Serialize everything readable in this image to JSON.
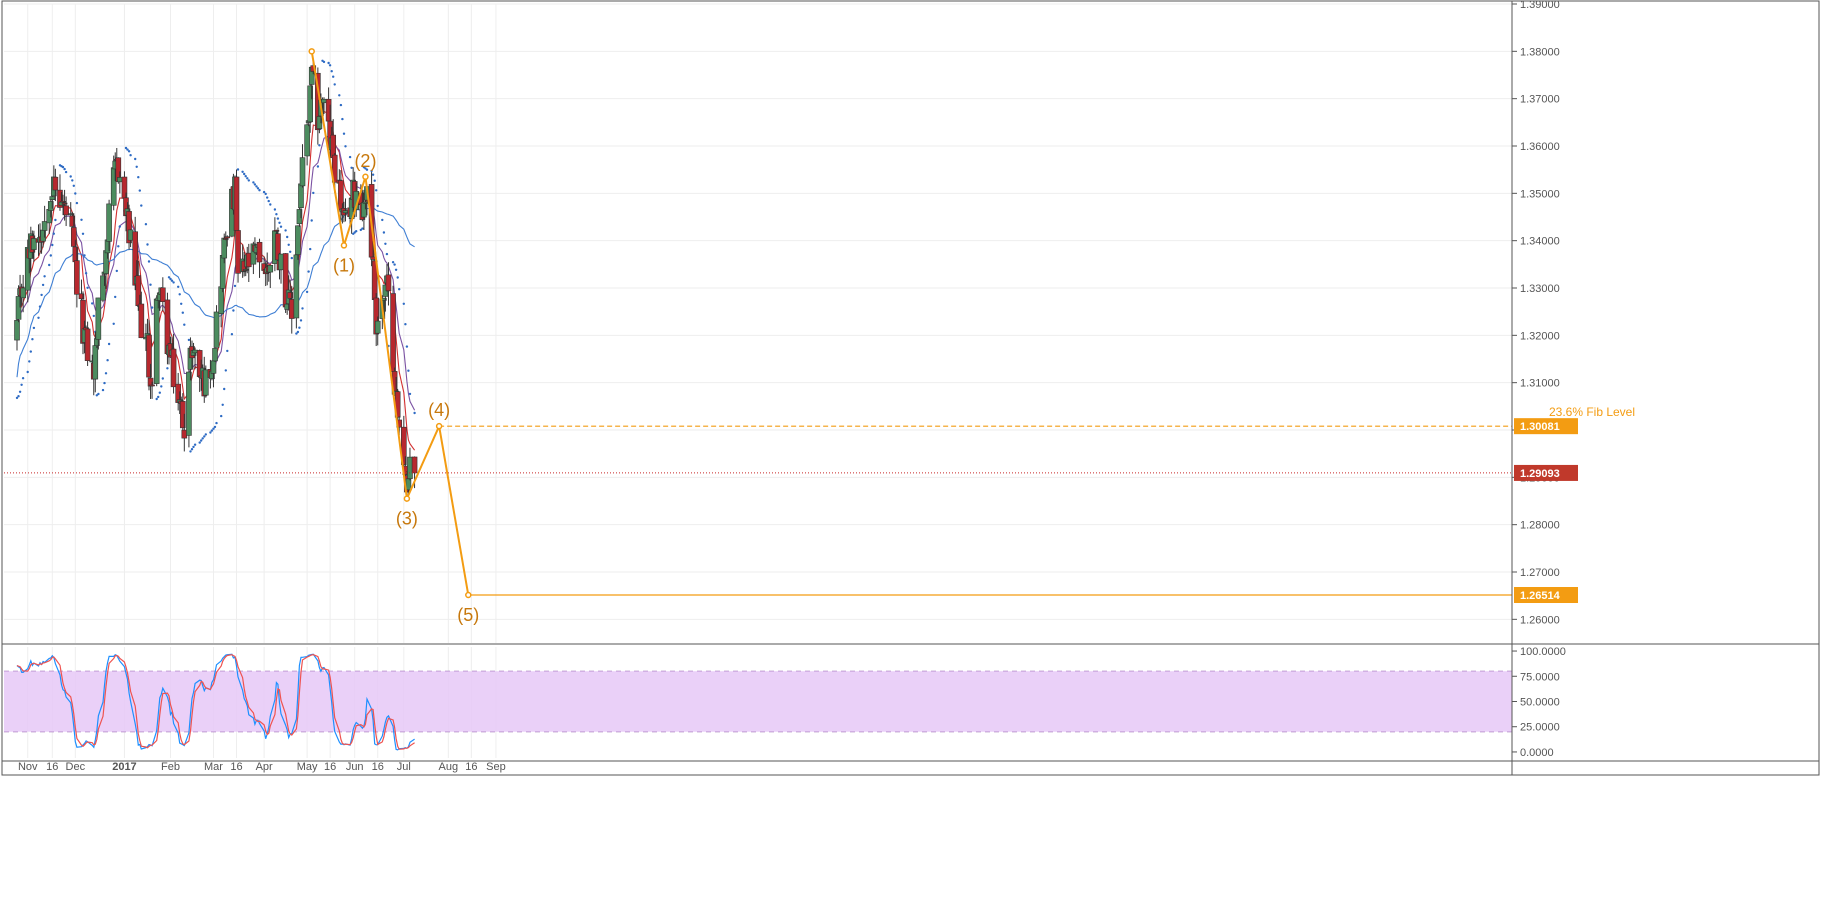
{
  "colors": {
    "up_candle": "#4c8c5f",
    "down_candle": "#b7282e",
    "ema_fast": "#d32f2f",
    "ema_slow": "#7b52a3",
    "sma_long": "#3f7fd4",
    "psar": "#2e6bc4",
    "wave": "#f39c12",
    "price_line": "#c62828",
    "stoch_k": "#1e90ff",
    "stoch_d": "#ef5350",
    "stoch_band": "#e6c8f7",
    "grid": "#eeeeee"
  },
  "chart_data": [
    {
      "type": "candlestick",
      "ylim": [
        1.255,
        1.39
      ],
      "grid": true,
      "x_tick_labels": [
        "Nov",
        "16",
        "Dec",
        "2017",
        "Feb",
        "Mar",
        "16",
        "Apr",
        "May",
        "16",
        "Jun",
        "16",
        "Jul",
        "Aug",
        "16",
        "Sep"
      ],
      "y_tick_labels": [
        "1.39000",
        "1.38000",
        "1.37000",
        "1.36000",
        "1.35000",
        "1.34000",
        "1.33000",
        "1.32000",
        "1.31000",
        "1.30000",
        "1.29000",
        "1.28000",
        "1.27000",
        "1.26000"
      ],
      "y_ticks": [
        1.39,
        1.38,
        1.37,
        1.36,
        1.35,
        1.34,
        1.33,
        1.32,
        1.31,
        1.3,
        1.29,
        1.28,
        1.27,
        1.26
      ],
      "last_price": {
        "value": 1.29093,
        "label": "1.29093"
      },
      "levels": [
        {
          "value": 1.30081,
          "label": "1.30081",
          "annotation": "23.6% Fib Level",
          "dashed": true
        },
        {
          "value": 1.26514,
          "label": "1.26514",
          "annotation": "",
          "dashed": false
        }
      ],
      "elliott_wave": {
        "points": [
          {
            "date": "2017-05-04",
            "price": 1.38
          },
          {
            "date": "2017-05-25",
            "price": 1.339
          },
          {
            "date": "2017-06-08",
            "price": 1.3535
          },
          {
            "date": "2017-07-05",
            "price": 1.2855
          },
          {
            "date": "2017-07-26",
            "price": 1.30081
          },
          {
            "date": "2017-08-14",
            "price": 1.26514
          },
          {
            "date": "2017-09-30",
            "price": 1.26514
          }
        ],
        "labels": [
          {
            "text": "(1)",
            "point": 1,
            "position": "below"
          },
          {
            "text": "(2)",
            "point": 2,
            "position": "above"
          },
          {
            "text": "(3)",
            "point": 3,
            "position": "below"
          },
          {
            "text": "(4)",
            "point": 4,
            "position": "above"
          },
          {
            "text": "(5)",
            "point": 5,
            "position": "below"
          }
        ]
      },
      "ohlc_key_closes": [
        [
          "2016-10-24",
          1.322
        ],
        [
          "2016-10-28",
          1.332
        ],
        [
          "2016-11-03",
          1.34
        ],
        [
          "2016-11-10",
          1.343
        ],
        [
          "2016-11-15",
          1.352
        ],
        [
          "2016-11-22",
          1.348
        ],
        [
          "2016-11-28",
          1.343
        ],
        [
          "2016-12-02",
          1.33
        ],
        [
          "2016-12-08",
          1.318
        ],
        [
          "2016-12-13",
          1.312
        ],
        [
          "2016-12-16",
          1.325
        ],
        [
          "2016-12-21",
          1.339
        ],
        [
          "2016-12-28",
          1.357
        ],
        [
          "2017-01-02",
          1.348
        ],
        [
          "2017-01-06",
          1.339
        ],
        [
          "2017-01-12",
          1.324
        ],
        [
          "2017-01-17",
          1.317
        ],
        [
          "2017-01-20",
          1.308
        ],
        [
          "2017-01-24",
          1.331
        ],
        [
          "2017-01-27",
          1.325
        ],
        [
          "2017-02-01",
          1.315
        ],
        [
          "2017-02-06",
          1.306
        ],
        [
          "2017-02-10",
          1.302
        ],
        [
          "2017-02-15",
          1.318
        ],
        [
          "2017-02-20",
          1.312
        ],
        [
          "2017-02-24",
          1.31
        ],
        [
          "2017-03-01",
          1.317
        ],
        [
          "2017-03-06",
          1.333
        ],
        [
          "2017-03-10",
          1.344
        ],
        [
          "2017-03-15",
          1.35
        ],
        [
          "2017-03-17",
          1.332
        ],
        [
          "2017-03-24",
          1.335
        ],
        [
          "2017-03-31",
          1.337
        ],
        [
          "2017-04-05",
          1.333
        ],
        [
          "2017-04-10",
          1.342
        ],
        [
          "2017-04-14",
          1.335
        ],
        [
          "2017-04-19",
          1.326
        ],
        [
          "2017-04-21",
          1.324
        ],
        [
          "2017-04-26",
          1.348
        ],
        [
          "2017-04-28",
          1.355
        ],
        [
          "2017-05-02",
          1.366
        ],
        [
          "2017-05-04",
          1.374
        ],
        [
          "2017-05-08",
          1.366
        ],
        [
          "2017-05-11",
          1.37
        ],
        [
          "2017-05-16",
          1.361
        ],
        [
          "2017-05-19",
          1.356
        ],
        [
          "2017-05-23",
          1.348
        ],
        [
          "2017-05-25",
          1.342
        ],
        [
          "2017-05-30",
          1.349
        ],
        [
          "2017-06-02",
          1.351
        ],
        [
          "2017-06-07",
          1.347
        ],
        [
          "2017-06-09",
          1.352
        ],
        [
          "2017-06-13",
          1.334
        ],
        [
          "2017-06-15",
          1.323
        ],
        [
          "2017-06-20",
          1.328
        ],
        [
          "2017-06-22",
          1.33
        ],
        [
          "2017-06-26",
          1.316
        ],
        [
          "2017-06-28",
          1.306
        ],
        [
          "2017-06-30",
          1.299
        ],
        [
          "2017-07-04",
          1.293
        ],
        [
          "2017-07-05",
          1.287
        ],
        [
          "2017-07-07",
          1.291
        ],
        [
          "2017-07-10",
          1.29093
        ]
      ],
      "overlays": [
        {
          "name": "EMA fast",
          "color_key": "ema_fast"
        },
        {
          "name": "EMA slow",
          "color_key": "ema_slow"
        },
        {
          "name": "SMA long",
          "color_key": "sma_long"
        },
        {
          "name": "Parabolic SAR",
          "color_key": "psar"
        }
      ]
    },
    {
      "type": "line",
      "ylim": [
        -6,
        104
      ],
      "grid": true,
      "y_tick_labels": [
        "100.0000",
        "75.0000",
        "50.0000",
        "25.0000",
        "0.0000"
      ],
      "y_ticks": [
        100,
        75,
        50,
        25,
        0
      ],
      "band": [
        20,
        80
      ],
      "series": [
        {
          "key": "k",
          "color_key": "stoch_k"
        },
        {
          "key": "d",
          "color_key": "stoch_d"
        }
      ]
    }
  ]
}
